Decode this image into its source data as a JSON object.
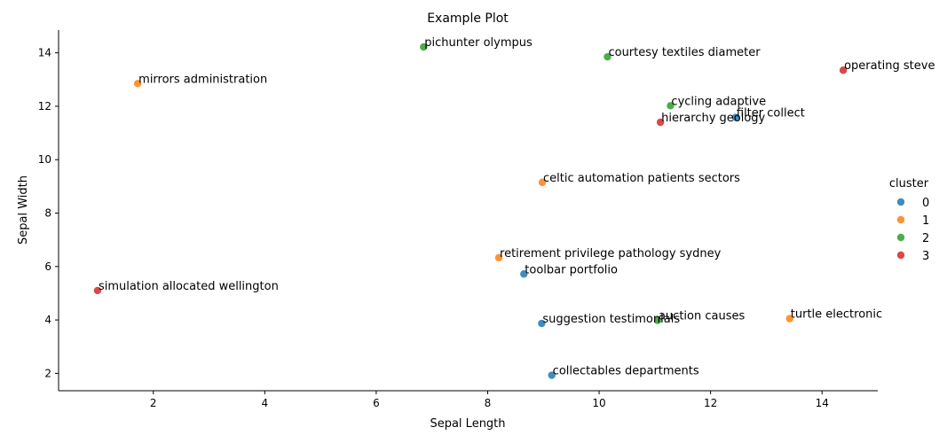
{
  "chart_data": {
    "type": "scatter",
    "title": "Example Plot",
    "xlabel": "Sepal Length",
    "ylabel": "Sepal Width",
    "xlim": [
      0.3,
      15.0
    ],
    "ylim": [
      1.35,
      14.85
    ],
    "xticks": [
      2,
      4,
      6,
      8,
      10,
      12,
      14
    ],
    "yticks": [
      2,
      4,
      6,
      8,
      10,
      12,
      14
    ],
    "grid": false,
    "legend": {
      "title": "cluster",
      "placement": "right",
      "entries": [
        {
          "label": "0",
          "color": "#1f77b4"
        },
        {
          "label": "1",
          "color": "#ff7f0e"
        },
        {
          "label": "2",
          "color": "#2ca02c"
        },
        {
          "label": "3",
          "color": "#d62728"
        }
      ]
    },
    "points": [
      {
        "label": "pichunter olympus",
        "x": 6.85,
        "y": 14.22,
        "cluster": 2
      },
      {
        "label": "courtesy textiles diameter",
        "x": 10.15,
        "y": 13.85,
        "cluster": 2
      },
      {
        "label": "operating steve",
        "x": 14.38,
        "y": 13.35,
        "cluster": 3
      },
      {
        "label": "mirrors administration",
        "x": 1.72,
        "y": 12.85,
        "cluster": 1
      },
      {
        "label": "cycling adaptive",
        "x": 11.28,
        "y": 12.02,
        "cluster": 2
      },
      {
        "label": "filter collect",
        "x": 12.45,
        "y": 11.58,
        "cluster": 0
      },
      {
        "label": "hierarchy geology",
        "x": 11.1,
        "y": 11.4,
        "cluster": 3
      },
      {
        "label": "celtic automation patients sectors",
        "x": 8.98,
        "y": 9.15,
        "cluster": 1
      },
      {
        "label": "retirement privilege pathology sydney",
        "x": 8.2,
        "y": 6.33,
        "cluster": 1
      },
      {
        "label": "toolbar portfolio",
        "x": 8.65,
        "y": 5.72,
        "cluster": 0
      },
      {
        "label": "simulation allocated wellington",
        "x": 1.0,
        "y": 5.1,
        "cluster": 3
      },
      {
        "label": "auction causes",
        "x": 11.05,
        "y": 3.98,
        "cluster": 2
      },
      {
        "label": "turtle electronic",
        "x": 13.42,
        "y": 4.05,
        "cluster": 1
      },
      {
        "label": "suggestion testimonials",
        "x": 8.97,
        "y": 3.87,
        "cluster": 0
      },
      {
        "label": "collectables departments",
        "x": 9.15,
        "y": 1.93,
        "cluster": 0
      }
    ]
  }
}
